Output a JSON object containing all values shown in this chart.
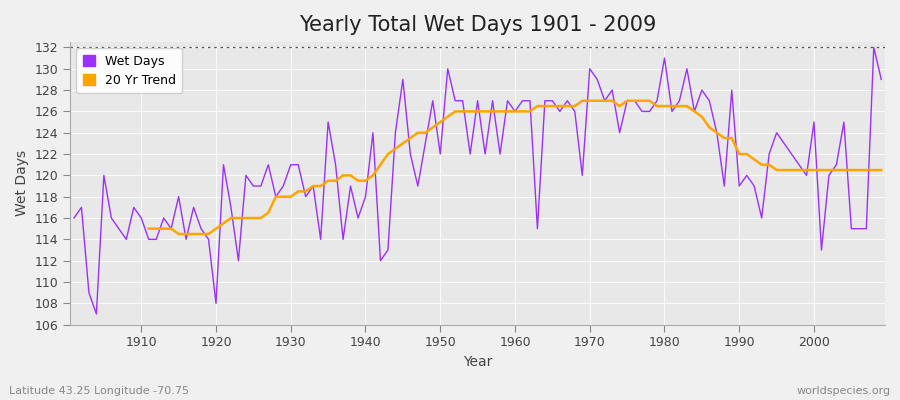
{
  "title": "Yearly Total Wet Days 1901 - 2009",
  "xlabel": "Year",
  "ylabel": "Wet Days",
  "subtitle_left": "Latitude 43.25 Longitude -70.75",
  "subtitle_right": "worldspecies.org",
  "ylim": [
    106,
    132.5
  ],
  "xlim": [
    1901,
    2009
  ],
  "yticks": [
    106,
    108,
    110,
    112,
    114,
    116,
    118,
    120,
    122,
    124,
    126,
    128,
    130,
    132
  ],
  "xticks": [
    1910,
    1920,
    1930,
    1940,
    1950,
    1960,
    1970,
    1980,
    1990,
    2000
  ],
  "wet_days_color": "#9B30FF",
  "trend_color": "#FFA500",
  "background_color": "#F0F0F0",
  "plot_bg_color": "#E8E8E8",
  "grid_color": "#FFFFFF",
  "wet_days": {
    "1901": 116,
    "1902": 117,
    "1903": 109,
    "1904": 107,
    "1905": 120,
    "1906": 116,
    "1907": 115,
    "1908": 114,
    "1909": 117,
    "1910": 116,
    "1911": 114,
    "1912": 114,
    "1913": 116,
    "1914": 115,
    "1915": 118,
    "1916": 114,
    "1917": 117,
    "1918": 115,
    "1919": 114,
    "1920": 108,
    "1921": 121,
    "1922": 117,
    "1923": 112,
    "1924": 120,
    "1925": 119,
    "1926": 119,
    "1927": 121,
    "1928": 118,
    "1929": 119,
    "1930": 121,
    "1931": 121,
    "1932": 118,
    "1933": 119,
    "1934": 114,
    "1935": 125,
    "1936": 121,
    "1937": 114,
    "1938": 119,
    "1939": 116,
    "1940": 118,
    "1941": 124,
    "1942": 112,
    "1943": 113,
    "1944": 124,
    "1945": 129,
    "1946": 122,
    "1947": 119,
    "1948": 123,
    "1949": 127,
    "1950": 122,
    "1951": 130,
    "1952": 127,
    "1953": 127,
    "1954": 122,
    "1955": 127,
    "1956": 122,
    "1957": 127,
    "1958": 122,
    "1959": 127,
    "1960": 126,
    "1961": 127,
    "1962": 127,
    "1963": 115,
    "1964": 127,
    "1965": 127,
    "1966": 126,
    "1967": 127,
    "1968": 126,
    "1969": 120,
    "1970": 130,
    "1971": 129,
    "1972": 127,
    "1973": 128,
    "1974": 124,
    "1975": 127,
    "1976": 127,
    "1977": 126,
    "1978": 126,
    "1979": 127,
    "1980": 131,
    "1981": 126,
    "1982": 127,
    "1983": 130,
    "1984": 126,
    "1985": 128,
    "1986": 127,
    "1987": 124,
    "1988": 119,
    "1989": 128,
    "1990": 119,
    "1991": 120,
    "1992": 119,
    "1993": 116,
    "1994": 122,
    "1995": 124,
    "1996": 123,
    "1997": 122,
    "1998": 121,
    "1999": 120,
    "2000": 125,
    "2001": 113,
    "2002": 120,
    "2003": 121,
    "2004": 125,
    "2005": 115,
    "2006": 115,
    "2007": 115,
    "2008": 132,
    "2009": 129
  },
  "trend_20yr": {
    "1911": 115.0,
    "1912": 115.0,
    "1913": 115.0,
    "1914": 115.0,
    "1915": 114.5,
    "1916": 114.5,
    "1917": 114.5,
    "1918": 114.5,
    "1919": 114.5,
    "1920": 115.0,
    "1921": 115.5,
    "1922": 116.0,
    "1923": 116.0,
    "1924": 116.0,
    "1925": 116.0,
    "1926": 116.0,
    "1927": 116.5,
    "1928": 118.0,
    "1929": 118.0,
    "1930": 118.0,
    "1931": 118.5,
    "1932": 118.5,
    "1933": 119.0,
    "1934": 119.0,
    "1935": 119.5,
    "1936": 119.5,
    "1937": 120.0,
    "1938": 120.0,
    "1939": 119.5,
    "1940": 119.5,
    "1941": 120.0,
    "1942": 121.0,
    "1943": 122.0,
    "1944": 122.5,
    "1945": 123.0,
    "1946": 123.5,
    "1947": 124.0,
    "1948": 124.0,
    "1949": 124.5,
    "1950": 125.0,
    "1951": 125.5,
    "1952": 126.0,
    "1953": 126.0,
    "1954": 126.0,
    "1955": 126.0,
    "1956": 126.0,
    "1957": 126.0,
    "1958": 126.0,
    "1959": 126.0,
    "1960": 126.0,
    "1961": 126.0,
    "1962": 126.0,
    "1963": 126.5,
    "1964": 126.5,
    "1965": 126.5,
    "1966": 126.5,
    "1967": 126.5,
    "1968": 126.5,
    "1969": 127.0,
    "1970": 127.0,
    "1971": 127.0,
    "1972": 127.0,
    "1973": 127.0,
    "1974": 126.5,
    "1975": 127.0,
    "1976": 127.0,
    "1977": 127.0,
    "1978": 127.0,
    "1979": 126.5,
    "1980": 126.5,
    "1981": 126.5,
    "1982": 126.5,
    "1983": 126.5,
    "1984": 126.0,
    "1985": 125.5,
    "1986": 124.5,
    "1987": 124.0,
    "1988": 123.5,
    "1989": 123.5,
    "1990": 122.0,
    "1991": 122.0,
    "1992": 121.5,
    "1993": 121.0,
    "1994": 121.0,
    "1995": 120.5,
    "1996": 120.5,
    "1997": 120.5,
    "1998": 120.5,
    "1999": 120.5,
    "2000": 120.5,
    "2001": 120.5,
    "2002": 120.5,
    "2003": 120.5,
    "2004": 120.5,
    "2005": 120.5,
    "2006": 120.5,
    "2007": 120.5,
    "2008": 120.5,
    "2009": 120.5
  },
  "legend_wet_days_label": "Wet Days",
  "legend_trend_label": "20 Yr Trend",
  "title_fontsize": 15,
  "axis_label_fontsize": 10,
  "tick_fontsize": 9,
  "annotation_fontsize": 8
}
